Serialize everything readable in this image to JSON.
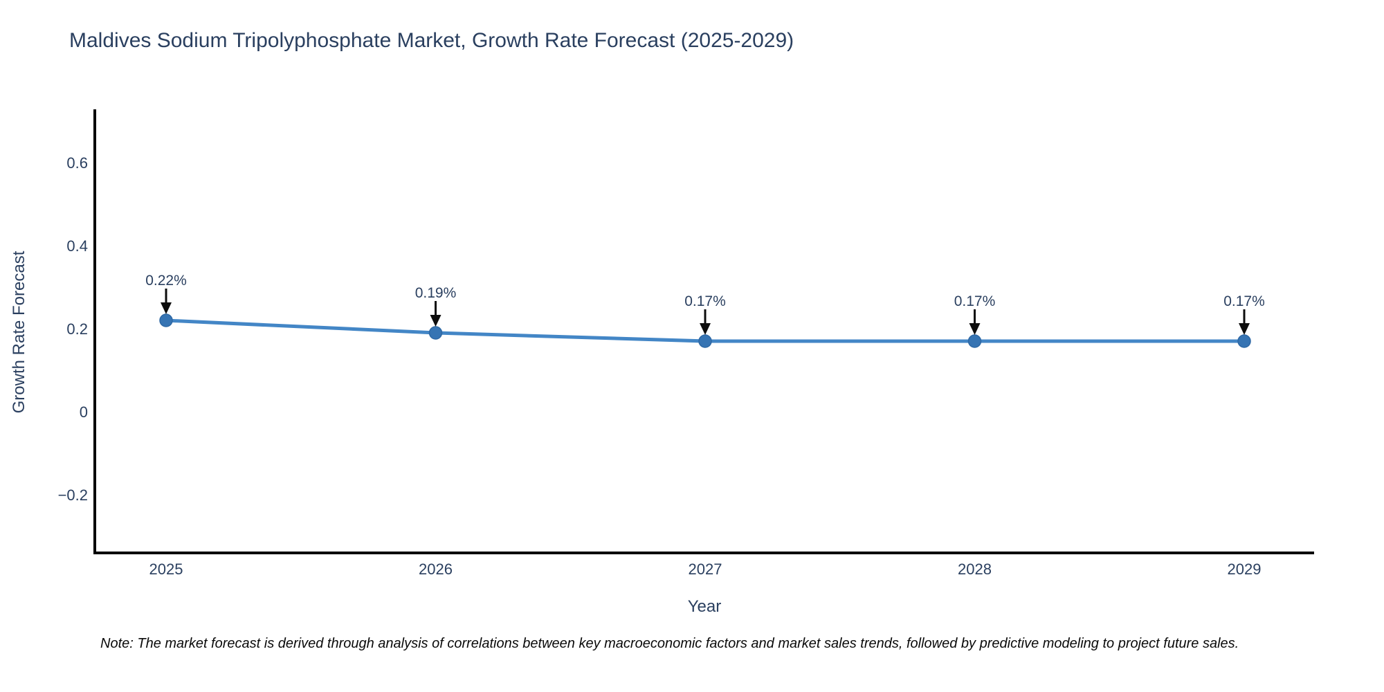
{
  "page": {
    "background_color": "#ffffff"
  },
  "chart_data": {
    "type": "line",
    "title": "Maldives Sodium Tripolyphosphate Market, Growth Rate Forecast (2025-2029)",
    "xlabel": "Year",
    "ylabel": "Growth Rate Forecast",
    "categories": [
      2025,
      2026,
      2027,
      2028,
      2029
    ],
    "values": [
      0.22,
      0.19,
      0.17,
      0.17,
      0.17
    ],
    "point_labels": [
      "0.22%",
      "0.19%",
      "0.17%",
      "0.17%",
      "0.17%"
    ],
    "ytick_values": [
      -0.2,
      0,
      0.2,
      0.4,
      0.6
    ],
    "ytick_labels": [
      "−0.2",
      "0",
      "0.2",
      "0.4",
      "0.6"
    ],
    "ylim": [
      -0.34,
      0.725
    ],
    "grid": false,
    "legend": false,
    "annotations_have_arrows": true,
    "colors": {
      "line": "#4386c6",
      "marker_fill": "#3674b3",
      "marker_edge": "#2e68a5",
      "arrow": "#0d0d0d",
      "text": "#2a3f5f",
      "axis_line": "#000000"
    }
  },
  "note": {
    "text": "Note: The market forecast is derived through analysis of correlations between key macroeconomic factors and market sales trends, followed by predictive modeling to project future sales."
  }
}
